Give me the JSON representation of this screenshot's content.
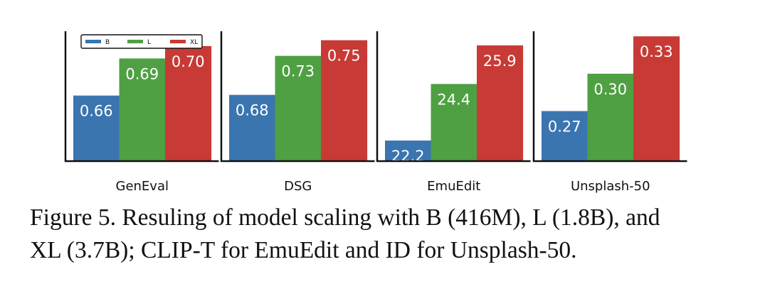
{
  "chart_data": {
    "type": "bar",
    "legend": {
      "placement": "top-left of first panel",
      "entries": [
        {
          "name": "B",
          "color": "#3a75b0"
        },
        {
          "name": "L",
          "color": "#4fa043"
        },
        {
          "name": "XL",
          "color": "#c83a35"
        }
      ]
    },
    "panels": [
      {
        "category": "GenEval",
        "values": [
          0.66,
          0.69,
          0.7
        ],
        "labels": [
          "0.66",
          "0.69",
          "0.70"
        ],
        "ylim": [
          0.607,
          0.712
        ]
      },
      {
        "category": "DSG",
        "values": [
          0.68,
          0.73,
          0.75
        ],
        "labels": [
          "0.68",
          "0.73",
          "0.75"
        ],
        "ylim": [
          0.5952,
          0.7615
        ]
      },
      {
        "category": "EmuEdit",
        "values": [
          22.2,
          24.4,
          25.9
        ],
        "labels": [
          "22.2",
          "24.4",
          "25.9"
        ],
        "ylim": [
          21.4,
          26.45
        ]
      },
      {
        "category": "Unsplash-50",
        "values": [
          0.27,
          0.3,
          0.33
        ],
        "labels": [
          "0.27",
          "0.30",
          "0.33"
        ],
        "ylim": [
          0.2298,
          0.3341
        ]
      }
    ]
  },
  "caption": {
    "line1": "Figure 5. Resuling of model scaling with B (416M), L (1.8B), and",
    "line2": "XL (3.7B); CLIP-T for EmuEdit and ID for Unsplash-50."
  }
}
